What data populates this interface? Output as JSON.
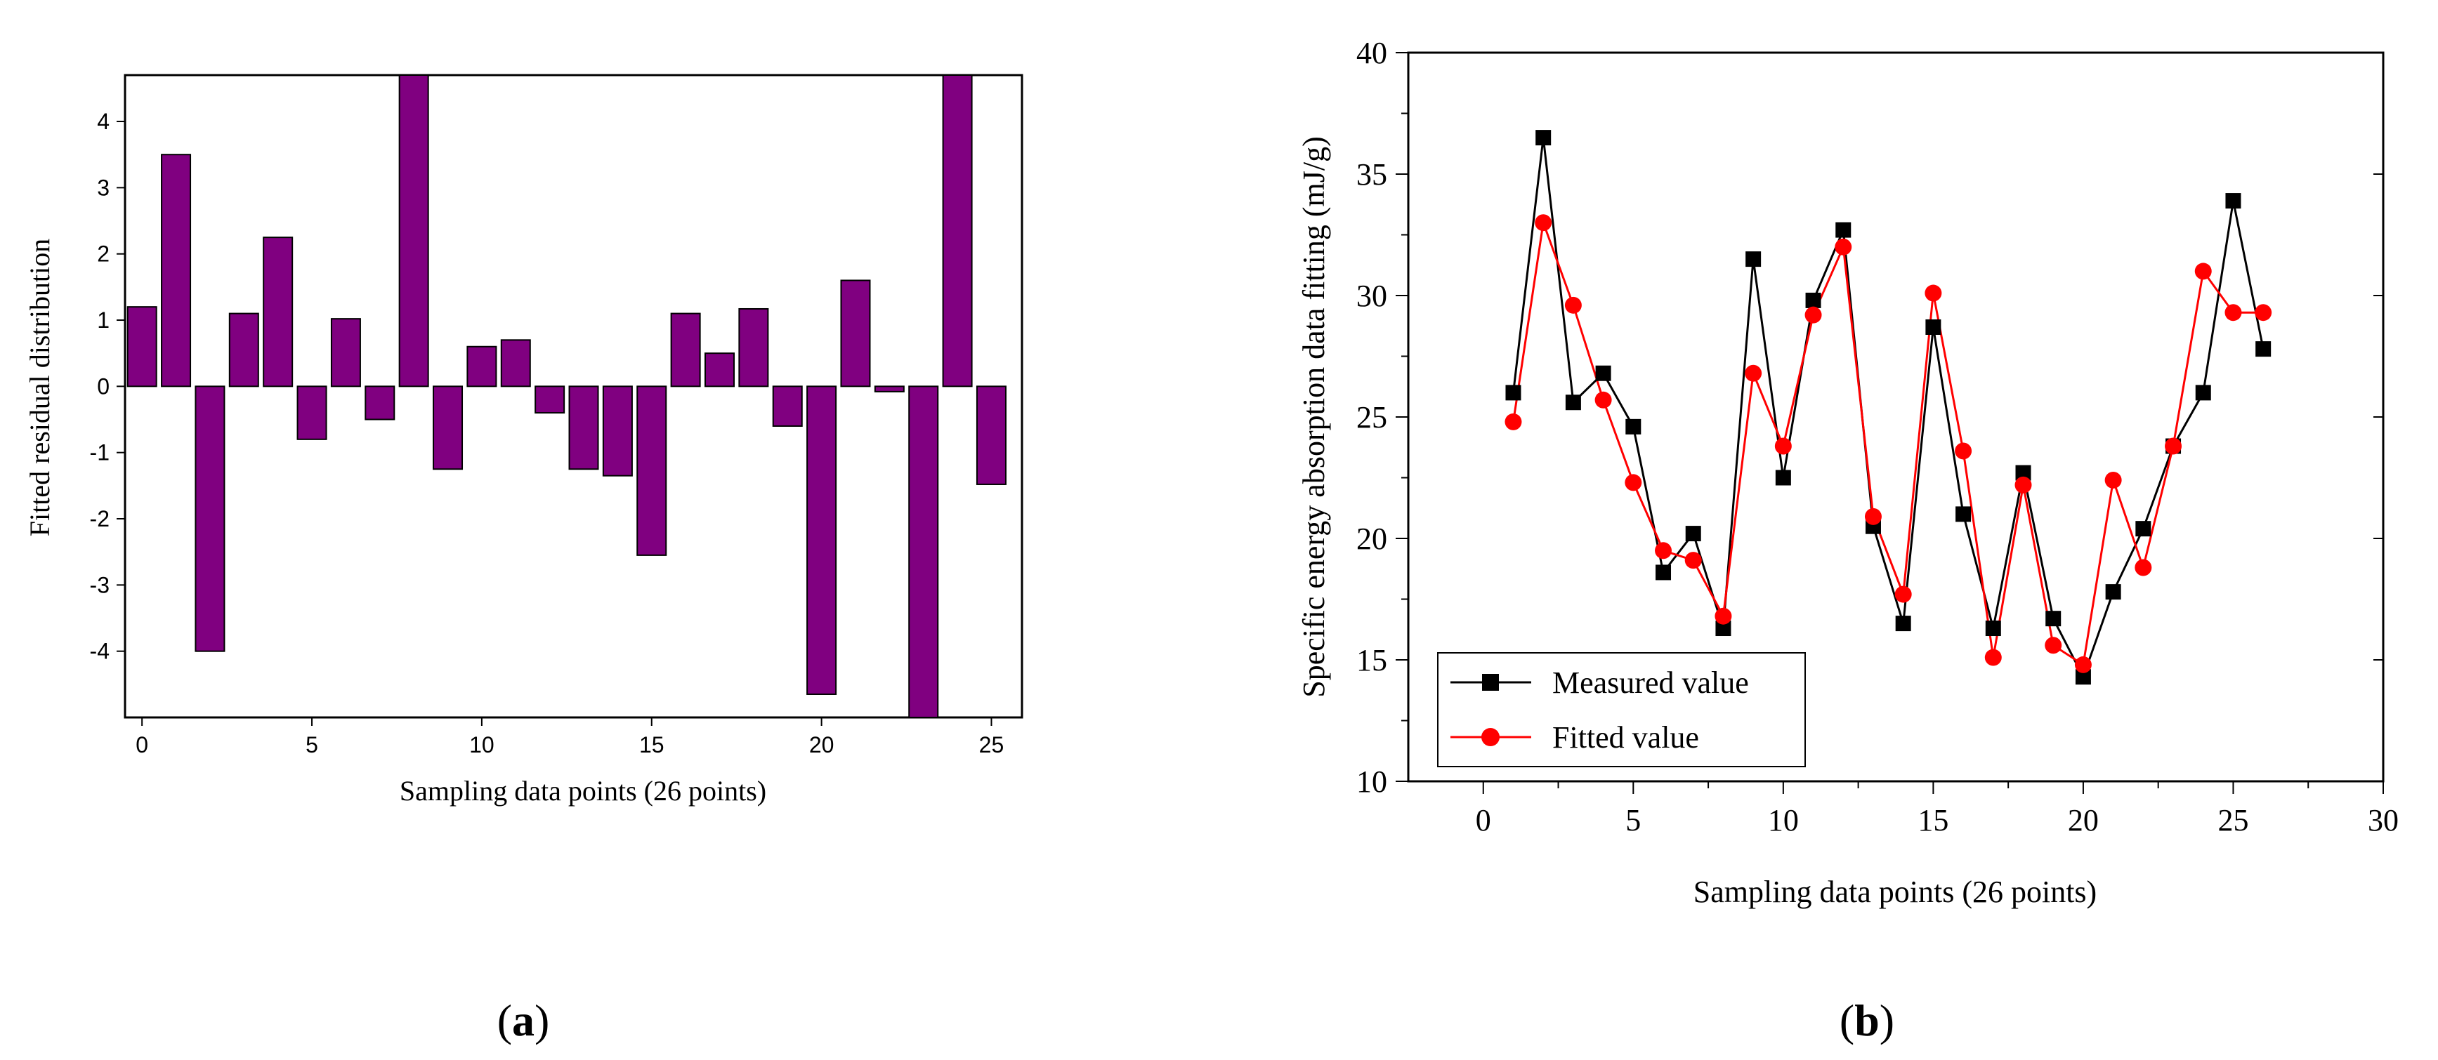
{
  "chart_data": [
    {
      "type": "bar",
      "panel_label": "a",
      "title": "",
      "xlabel": "Sampling data points (26 points)",
      "ylabel": "Fitted residual distribution",
      "xlim": [
        -0.5,
        25.9
      ],
      "ylim": [
        -5.0,
        4.7
      ],
      "xticks": [
        0,
        5,
        10,
        15,
        20,
        25
      ],
      "yticks": [
        4,
        3,
        2,
        1,
        0,
        -1,
        -2,
        -3,
        -4
      ],
      "ytick_labels": [
        "4",
        "3",
        "2",
        "1",
        "0",
        "-1",
        "-2",
        "-3",
        "-4"
      ],
      "x": [
        0,
        1,
        2,
        3,
        4,
        5,
        6,
        7,
        8,
        9,
        10,
        11,
        12,
        13,
        14,
        15,
        16,
        17,
        18,
        19,
        20,
        21,
        22,
        23,
        24,
        25
      ],
      "values": [
        1.2,
        3.5,
        -4.0,
        1.1,
        2.25,
        -0.8,
        1.02,
        -0.5,
        4.7,
        -1.25,
        0.6,
        0.7,
        -0.4,
        -1.25,
        -1.35,
        -2.55,
        1.1,
        0.5,
        1.17,
        -0.6,
        -4.65,
        1.6,
        -0.08,
        -5.0,
        4.7,
        -1.48
      ],
      "bar_color": "#800080",
      "grid": false
    },
    {
      "type": "line",
      "panel_label": "b",
      "title": "",
      "xlabel": "Sampling data points (26 points)",
      "ylabel": "Specific energy absorption data fitting (mJ/g)",
      "xlim": [
        -2.5,
        30
      ],
      "ylim": [
        10,
        40
      ],
      "xticks": [
        0,
        5,
        10,
        15,
        20,
        25,
        30
      ],
      "yticks": [
        10,
        15,
        20,
        25,
        30,
        35,
        40
      ],
      "legend": "bottom-left",
      "x": [
        1,
        2,
        3,
        4,
        5,
        6,
        7,
        8,
        9,
        10,
        11,
        12,
        13,
        14,
        15,
        16,
        17,
        18,
        19,
        20,
        21,
        22,
        23,
        24,
        25,
        26
      ],
      "series": [
        {
          "name": "Measured value",
          "color": "#000000",
          "marker": "square",
          "values": [
            26.0,
            36.5,
            25.6,
            26.8,
            24.6,
            18.6,
            20.2,
            16.3,
            31.5,
            22.5,
            29.8,
            32.7,
            20.5,
            16.5,
            28.7,
            21.0,
            16.3,
            22.7,
            16.7,
            14.3,
            17.8,
            20.4,
            23.8,
            26.0,
            33.9,
            27.8
          ]
        },
        {
          "name": "Fitted value",
          "color": "#ff0000",
          "marker": "circle",
          "values": [
            24.8,
            33.0,
            29.6,
            25.7,
            22.3,
            19.5,
            19.1,
            16.8,
            26.8,
            23.8,
            29.2,
            32.0,
            20.9,
            17.7,
            30.1,
            23.6,
            15.1,
            22.2,
            15.6,
            14.8,
            22.4,
            18.8,
            23.8,
            31.0,
            29.3,
            29.3
          ]
        }
      ],
      "grid": false
    }
  ]
}
